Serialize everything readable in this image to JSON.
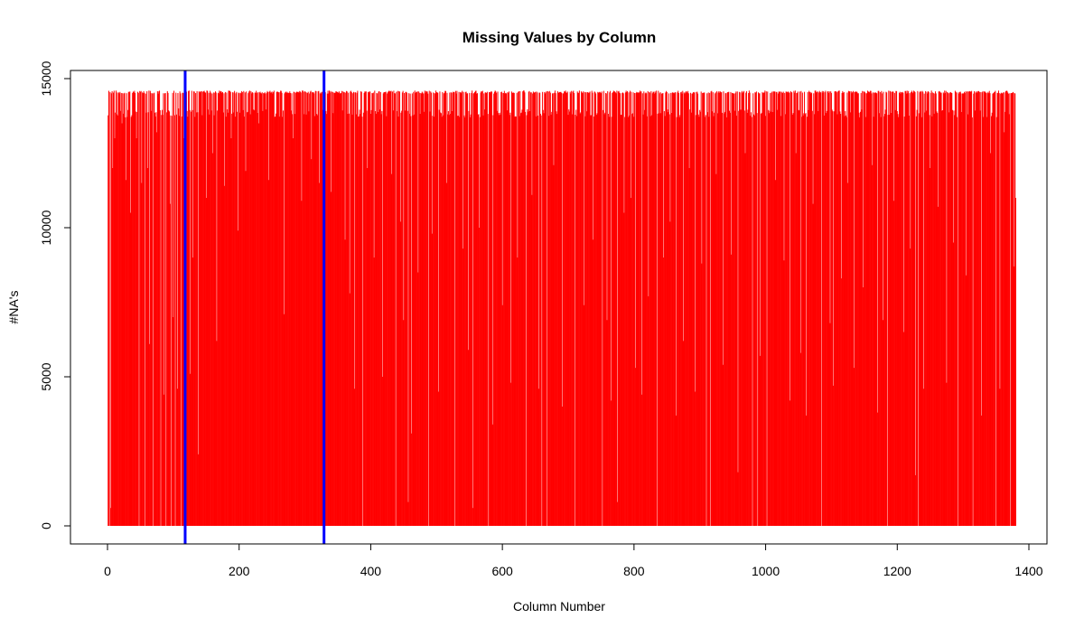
{
  "chart_data": {
    "type": "bar",
    "title": "Missing Values by Column",
    "xlabel": "Column Number",
    "ylabel": "#NA's",
    "xlim": [
      0,
      1400
    ],
    "ylim": [
      0,
      15000
    ],
    "x_ticks": [
      "0",
      "200",
      "400",
      "600",
      "800",
      "1000",
      "1200",
      "1400"
    ],
    "y_ticks": [
      "0",
      "5000",
      "10000",
      "15000"
    ],
    "grid": false,
    "legend": "none",
    "n_columns": 1380,
    "bar_color": "#ff0000",
    "max_value": 14600,
    "reference_lines": [
      {
        "x": 118,
        "color": "#0000ff"
      },
      {
        "x": 329,
        "color": "#0000ff"
      }
    ],
    "values_note": "Most columns have approximately 14,600 missing values; scattered columns drop lower, some to 0.",
    "dips": [
      [
        3,
        0
      ],
      [
        5,
        600
      ],
      [
        8,
        12000
      ],
      [
        11,
        13000
      ],
      [
        14,
        13800
      ],
      [
        22,
        13500
      ],
      [
        28,
        11600
      ],
      [
        35,
        10500
      ],
      [
        44,
        13000
      ],
      [
        48,
        0
      ],
      [
        52,
        11500
      ],
      [
        57,
        0
      ],
      [
        61,
        12000
      ],
      [
        64,
        6100
      ],
      [
        69,
        0
      ],
      [
        75,
        13200
      ],
      [
        81,
        0
      ],
      [
        86,
        4400
      ],
      [
        89,
        0
      ],
      [
        95,
        10800
      ],
      [
        97,
        0
      ],
      [
        100,
        7000
      ],
      [
        103,
        0
      ],
      [
        106,
        4600
      ],
      [
        108,
        14000
      ],
      [
        112,
        0
      ],
      [
        116,
        13000
      ],
      [
        126,
        5100
      ],
      [
        130,
        9000
      ],
      [
        138,
        2400
      ],
      [
        150,
        11000
      ],
      [
        160,
        12500
      ],
      [
        166,
        6200
      ],
      [
        178,
        11400
      ],
      [
        188,
        13000
      ],
      [
        198,
        9900
      ],
      [
        210,
        11900
      ],
      [
        230,
        13500
      ],
      [
        245,
        11600
      ],
      [
        268,
        7100
      ],
      [
        282,
        13000
      ],
      [
        295,
        10900
      ],
      [
        310,
        12300
      ],
      [
        322,
        11500
      ],
      [
        340,
        11200
      ],
      [
        361,
        9600
      ],
      [
        368,
        7800
      ],
      [
        375,
        4600
      ],
      [
        388,
        0
      ],
      [
        395,
        12000
      ],
      [
        405,
        9000
      ],
      [
        418,
        5000
      ],
      [
        432,
        11800
      ],
      [
        438,
        0
      ],
      [
        445,
        10200
      ],
      [
        450,
        6900
      ],
      [
        457,
        800
      ],
      [
        462,
        3100
      ],
      [
        472,
        8500
      ],
      [
        488,
        0
      ],
      [
        493,
        9800
      ],
      [
        503,
        4500
      ],
      [
        515,
        11500
      ],
      [
        528,
        0
      ],
      [
        540,
        9300
      ],
      [
        548,
        5900
      ],
      [
        555,
        600
      ],
      [
        565,
        10000
      ],
      [
        579,
        0
      ],
      [
        585,
        3400
      ],
      [
        600,
        7400
      ],
      [
        613,
        4800
      ],
      [
        623,
        9000
      ],
      [
        636,
        0
      ],
      [
        645,
        11100
      ],
      [
        655,
        4600
      ],
      [
        660,
        0
      ],
      [
        668,
        0
      ],
      [
        678,
        12100
      ],
      [
        691,
        4000
      ],
      [
        710,
        0
      ],
      [
        724,
        7400
      ],
      [
        738,
        9600
      ],
      [
        752,
        0
      ],
      [
        759,
        6900
      ],
      [
        765,
        4200
      ],
      [
        775,
        800
      ],
      [
        785,
        10500
      ],
      [
        795,
        11000
      ],
      [
        802,
        5300
      ],
      [
        812,
        4400
      ],
      [
        822,
        7700
      ],
      [
        835,
        0
      ],
      [
        845,
        9000
      ],
      [
        855,
        10200
      ],
      [
        864,
        3700
      ],
      [
        875,
        6200
      ],
      [
        884,
        12000
      ],
      [
        893,
        4500
      ],
      [
        903,
        8800
      ],
      [
        910,
        0
      ],
      [
        916,
        0
      ],
      [
        925,
        11800
      ],
      [
        935,
        5400
      ],
      [
        948,
        9100
      ],
      [
        958,
        1800
      ],
      [
        969,
        12500
      ],
      [
        980,
        0
      ],
      [
        988,
        0
      ],
      [
        992,
        5700
      ],
      [
        1002,
        0
      ],
      [
        1015,
        11600
      ],
      [
        1028,
        8900
      ],
      [
        1037,
        4200
      ],
      [
        1046,
        12500
      ],
      [
        1053,
        5800
      ],
      [
        1062,
        3700
      ],
      [
        1072,
        10800
      ],
      [
        1085,
        0
      ],
      [
        1098,
        6800
      ],
      [
        1103,
        4700
      ],
      [
        1115,
        8300
      ],
      [
        1125,
        11500
      ],
      [
        1134,
        5300
      ],
      [
        1148,
        8000
      ],
      [
        1162,
        12100
      ],
      [
        1170,
        3800
      ],
      [
        1178,
        6900
      ],
      [
        1185,
        0
      ],
      [
        1195,
        10900
      ],
      [
        1210,
        6500
      ],
      [
        1220,
        9300
      ],
      [
        1228,
        1700
      ],
      [
        1232,
        0
      ],
      [
        1240,
        4600
      ],
      [
        1250,
        12000
      ],
      [
        1262,
        10700
      ],
      [
        1275,
        4800
      ],
      [
        1285,
        9500
      ],
      [
        1292,
        0
      ],
      [
        1305,
        8400
      ],
      [
        1315,
        0
      ],
      [
        1328,
        3700
      ],
      [
        1342,
        12500
      ],
      [
        1350,
        0
      ],
      [
        1356,
        4600
      ],
      [
        1362,
        13200
      ],
      [
        1372,
        0
      ],
      [
        1377,
        8700
      ],
      [
        1380,
        11000
      ]
    ]
  }
}
